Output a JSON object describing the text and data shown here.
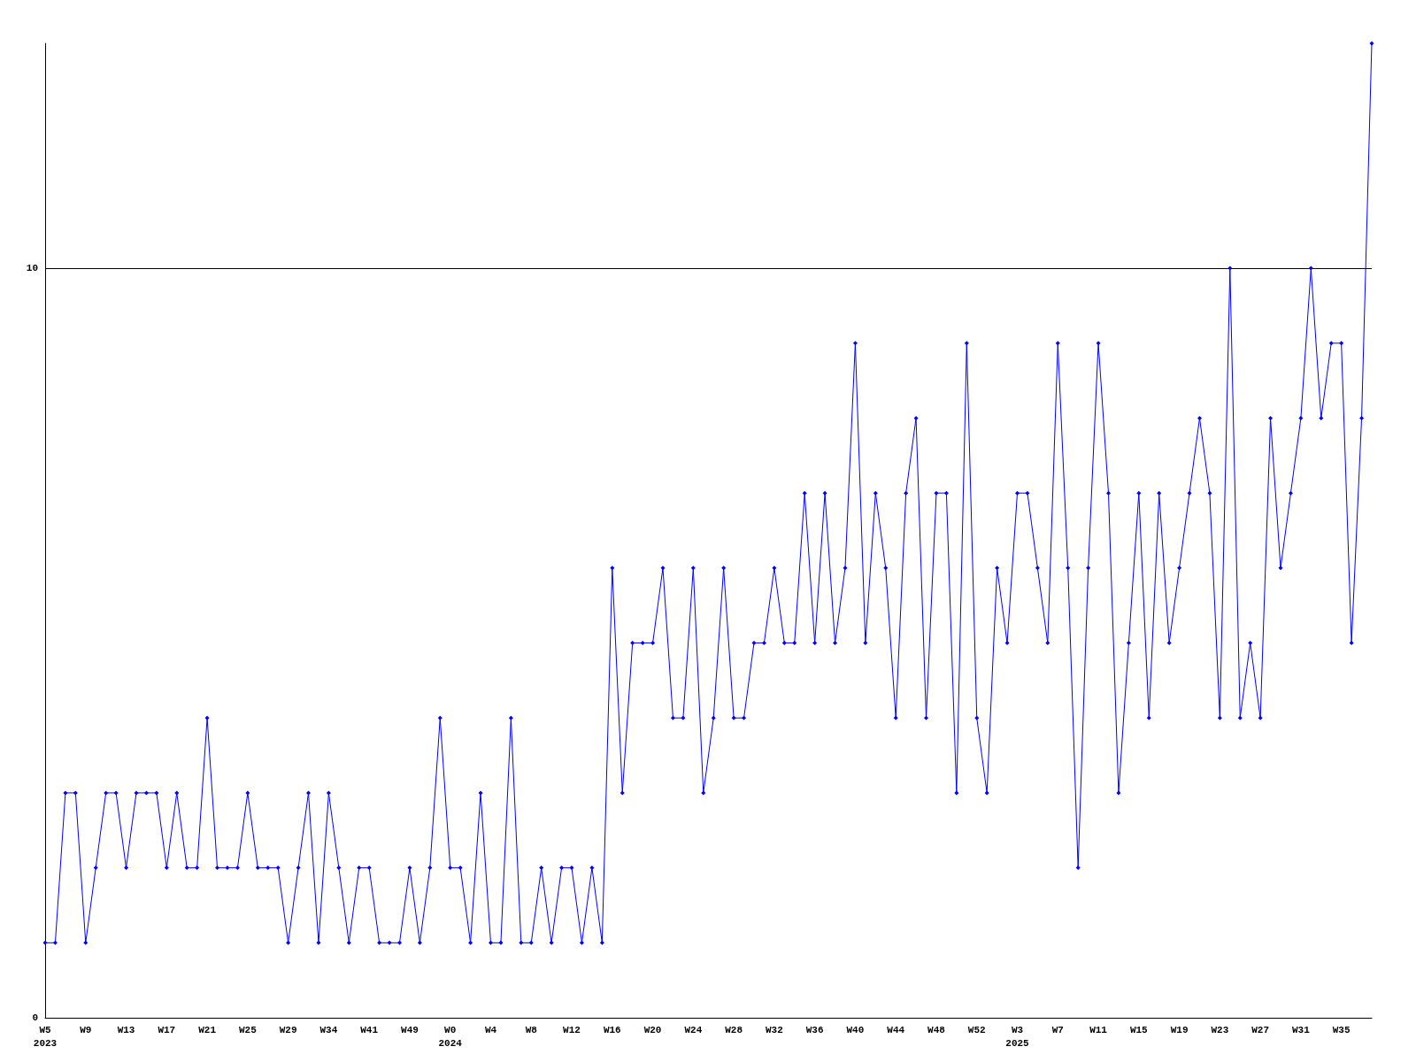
{
  "chart_data": {
    "type": "line",
    "categories": [
      "W5\n2023",
      null,
      null,
      null,
      "W9",
      null,
      null,
      null,
      "W13",
      null,
      null,
      null,
      "W17",
      null,
      null,
      null,
      "W21",
      null,
      null,
      null,
      "W25",
      null,
      null,
      null,
      "W29",
      null,
      null,
      null,
      "W34",
      null,
      null,
      null,
      "W41",
      null,
      null,
      null,
      "W49",
      null,
      null,
      null,
      "W0\n2024",
      null,
      null,
      null,
      "W4",
      null,
      null,
      null,
      "W8",
      null,
      null,
      null,
      "W12",
      null,
      null,
      null,
      "W16",
      null,
      null,
      null,
      "W20",
      null,
      null,
      null,
      "W24",
      null,
      null,
      null,
      "W28",
      null,
      null,
      null,
      "W32",
      null,
      null,
      null,
      "W36",
      null,
      null,
      null,
      "W40",
      null,
      null,
      null,
      "W44",
      null,
      null,
      null,
      "W48",
      null,
      null,
      null,
      "W52",
      null,
      null,
      null,
      "W3\n2025",
      null,
      null,
      null,
      "W7",
      null,
      null,
      null,
      "W11",
      null,
      null,
      null,
      "W15",
      null,
      null,
      null,
      "W19",
      null,
      null,
      null,
      "W23",
      null,
      null,
      null,
      "W27",
      null,
      null,
      null,
      "W31",
      null,
      null,
      null,
      "W35",
      null,
      null,
      null
    ],
    "series": [
      {
        "color": "#0000ff",
        "values": [
          1,
          1,
          3,
          3,
          1,
          2,
          3,
          3,
          2,
          3,
          3,
          3,
          2,
          3,
          2,
          2,
          4,
          2,
          2,
          2,
          3,
          2,
          2,
          2,
          1,
          2,
          3,
          1,
          3,
          2,
          1,
          2,
          2,
          1,
          1,
          1,
          2,
          1,
          2,
          4,
          2,
          2,
          1,
          3,
          1,
          1,
          4,
          1,
          1,
          2,
          1,
          2,
          2,
          1,
          2,
          1,
          6,
          3,
          5,
          5,
          5,
          6,
          4,
          4,
          6,
          3,
          4,
          6,
          4,
          4,
          5,
          5,
          6,
          5,
          5,
          7,
          5,
          7,
          5,
          6,
          9,
          5,
          7,
          6,
          4,
          7,
          8,
          4,
          7,
          7,
          3,
          9,
          4,
          3,
          6,
          5,
          7,
          7,
          6,
          5,
          9,
          6,
          2,
          6,
          9,
          7,
          3,
          5,
          7,
          4,
          7,
          5,
          6,
          7,
          8,
          7,
          4,
          10,
          4,
          5,
          4,
          8,
          6,
          7,
          8,
          10,
          8,
          9,
          9,
          5,
          8,
          13
        ]
      }
    ],
    "ylim": [
      0,
      13
    ],
    "yticks": [
      0,
      10
    ],
    "grid": "y",
    "marker": "diamond",
    "line_style": "solid"
  }
}
